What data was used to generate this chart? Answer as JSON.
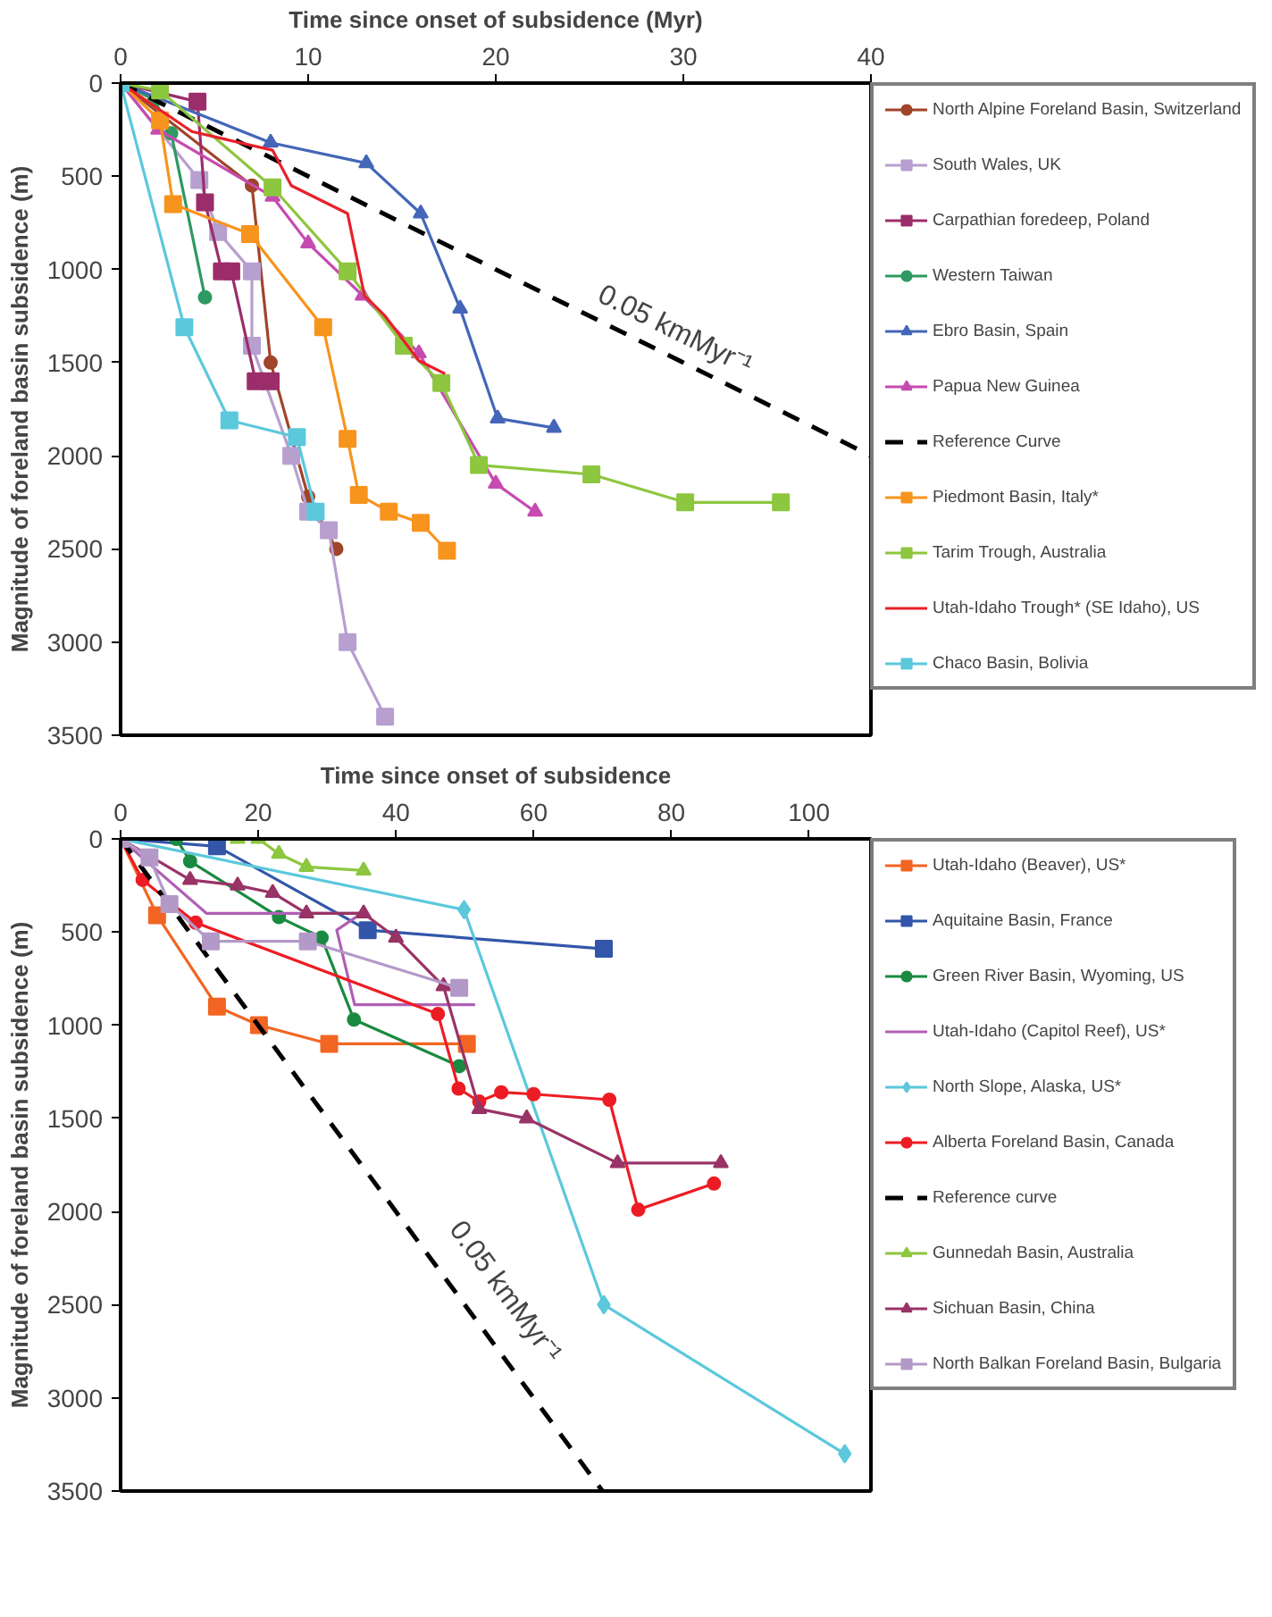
{
  "chart_data": [
    {
      "type": "line",
      "xlabel": "Time since onset of subsidence (Myr)",
      "ylabel": "Magnitude of foreland basin subsidence (m)",
      "xlim": [
        0,
        40
      ],
      "xticks": [
        0,
        10,
        20,
        30,
        40
      ],
      "ylim": [
        3500,
        0
      ],
      "yticks": [
        0,
        500,
        1000,
        1500,
        2000,
        2500,
        3000,
        3500
      ],
      "grid": false,
      "legend": "right",
      "annotations": [
        "0.05 kmMyr⁻¹"
      ],
      "series": [
        {
          "name": "North Alpine Foreland Basin, Switzerland",
          "color": "#a0442a",
          "marker": "circle",
          "x": [
            0,
            7,
            8,
            10,
            11.5
          ],
          "values": [
            0,
            550,
            1500,
            2220,
            2500
          ]
        },
        {
          "name": "South Wales, UK",
          "color": "#b79fcf",
          "marker": "square",
          "x": [
            0,
            4.2,
            5.2,
            7,
            7,
            9.1,
            10,
            11.1,
            12.1,
            14.1
          ],
          "values": [
            0,
            520,
            800,
            1010,
            1410,
            2000,
            2300,
            2400,
            3000,
            3400
          ]
        },
        {
          "name": "Carpathian foredeep, Poland",
          "color": "#9b2d6a",
          "marker": "square",
          "x": [
            0,
            4.1,
            4.5,
            5.4,
            5.9,
            7.2,
            8
          ],
          "values": [
            0,
            100,
            640,
            1010,
            1010,
            1600,
            1600
          ]
        },
        {
          "name": "Western Taiwan",
          "color": "#2e9960",
          "marker": "circle",
          "x": [
            0,
            1.8,
            2.7,
            4.5
          ],
          "values": [
            0,
            90,
            270,
            1150
          ]
        },
        {
          "name": "Ebro Basin, Spain",
          "color": "#4466b8",
          "marker": "triangle",
          "x": [
            0,
            8,
            13.1,
            16,
            18.1,
            20.1,
            23.1
          ],
          "values": [
            0,
            320,
            430,
            700,
            1210,
            1800,
            1850
          ]
        },
        {
          "name": "Papua New Guinea",
          "color": "#c64bb0",
          "marker": "triangle",
          "x": [
            0,
            2,
            8.1,
            10,
            12.9,
            15.9,
            20,
            22.1
          ],
          "values": [
            0,
            250,
            610,
            860,
            1140,
            1450,
            2150,
            2300
          ]
        },
        {
          "name": "Reference Curve",
          "color": "#000000",
          "marker": "none",
          "line_style": "dashed",
          "x": [
            0,
            40
          ],
          "values": [
            0,
            2000
          ]
        },
        {
          "name": "Piedmont Basin, Italy*",
          "color": "#f7941d",
          "marker": "square",
          "x": [
            0,
            2.1,
            2.8,
            6.9,
            10.8,
            12.1,
            12.7,
            14.3,
            16,
            17.4
          ],
          "values": [
            0,
            200,
            650,
            810,
            1310,
            1910,
            2210,
            2300,
            2360,
            2510
          ]
        },
        {
          "name": "Tarim Trough, Australia",
          "color": "#8dc63f",
          "marker": "square",
          "x": [
            0,
            2.1,
            8.1,
            12.1,
            15.1,
            17.1,
            19.1,
            25.1,
            30.1,
            35.2
          ],
          "values": [
            0,
            40,
            560,
            1010,
            1410,
            1610,
            2050,
            2100,
            2250,
            2250
          ]
        },
        {
          "name": "Utah-Idaho Trough* (SE Idaho), US",
          "color": "#e8202a",
          "marker": "none",
          "x": [
            0,
            3.8,
            8.1,
            9.1,
            10.9,
            12.1,
            13,
            14.1,
            15.9,
            17.3
          ],
          "values": [
            0,
            260,
            360,
            550,
            640,
            700,
            1140,
            1250,
            1490,
            1560
          ]
        },
        {
          "name": "Chaco Basin, Bolivia",
          "color": "#5bc8dc",
          "marker": "square",
          "x": [
            0,
            3.4,
            5.8,
            9.4,
            10.4
          ],
          "values": [
            0,
            1310,
            1810,
            1900,
            2300
          ]
        }
      ]
    },
    {
      "type": "line",
      "xlabel": "Time since onset of subsidence",
      "ylabel": "Magnitude of foreland basin subsidence (m)",
      "xlim": [
        0,
        109
      ],
      "xticks": [
        0,
        20,
        40,
        60,
        80,
        100
      ],
      "ylim": [
        3500,
        0
      ],
      "yticks": [
        0,
        500,
        1000,
        1500,
        2000,
        2500,
        3000,
        3500
      ],
      "grid": false,
      "legend": "right",
      "annotations": [
        "0.05 kmMyr⁻¹"
      ],
      "series": [
        {
          "name": "Utah-Idaho (Beaver), US*",
          "color": "#f26522",
          "marker": "square",
          "x": [
            0,
            5.3,
            14,
            20.1,
            30.3,
            50.3
          ],
          "values": [
            0,
            410,
            900,
            1000,
            1100,
            1100
          ]
        },
        {
          "name": "Aquitaine Basin, France",
          "color": "#3355aa",
          "marker": "square",
          "x": [
            0,
            14,
            35.9,
            70.2
          ],
          "values": [
            0,
            40,
            490,
            590
          ]
        },
        {
          "name": "Green River Basin, Wyoming, US",
          "color": "#1a8a40",
          "marker": "circle",
          "x": [
            0,
            8.1,
            10.1,
            23,
            29.2,
            33.9,
            49.2
          ],
          "values": [
            0,
            0,
            120,
            420,
            530,
            970,
            1220
          ]
        },
        {
          "name": "Utah-Idaho (Capitol Reef), US*",
          "color": "#b05fb5",
          "marker": "none",
          "x": [
            0,
            12.5,
            35,
            31.4,
            34,
            51.5
          ],
          "values": [
            0,
            400,
            400,
            490,
            890,
            890
          ]
        },
        {
          "name": "North Slope, Alaska, US*",
          "color": "#5bc8dc",
          "marker": "diamond",
          "x": [
            0,
            49.9,
            70.2,
            105.2
          ],
          "values": [
            0,
            380,
            2500,
            3300
          ]
        },
        {
          "name": "Alberta Foreland Basin, Canada",
          "color": "#ed1c24",
          "marker": "circle",
          "x": [
            0,
            3.2,
            10.9,
            46.1,
            49.1,
            52.1,
            55.3,
            60,
            71,
            75.2,
            86.2
          ],
          "values": [
            0,
            220,
            450,
            940,
            1340,
            1410,
            1360,
            1370,
            1400,
            1990,
            1850
          ]
        },
        {
          "name": "Reference curve",
          "color": "#000000",
          "marker": "none",
          "line_style": "dashed",
          "x": [
            0,
            70
          ],
          "values": [
            0,
            3500
          ]
        },
        {
          "name": "Gunnedah Basin, Australia",
          "color": "#8dc63f",
          "marker": "triangle",
          "x": [
            0,
            17,
            20,
            23,
            27,
            35.3
          ],
          "values": [
            0,
            0,
            0,
            80,
            150,
            170
          ]
        },
        {
          "name": "Sichuan Basin, China",
          "color": "#993366",
          "marker": "triangle",
          "x": [
            0,
            10.1,
            17,
            22.1,
            27,
            35.3,
            40,
            46.9,
            52.1,
            59,
            72.2,
            87.2
          ],
          "values": [
            0,
            220,
            250,
            290,
            400,
            400,
            530,
            790,
            1450,
            1500,
            1740,
            1740
          ]
        },
        {
          "name": "North Balkan Foreland Basin, Bulgaria",
          "color": "#b399c8",
          "marker": "square",
          "x": [
            0,
            4.2,
            7.1,
            13.1,
            27.2,
            49.2
          ],
          "values": [
            0,
            100,
            350,
            550,
            550,
            800
          ]
        }
      ]
    }
  ]
}
